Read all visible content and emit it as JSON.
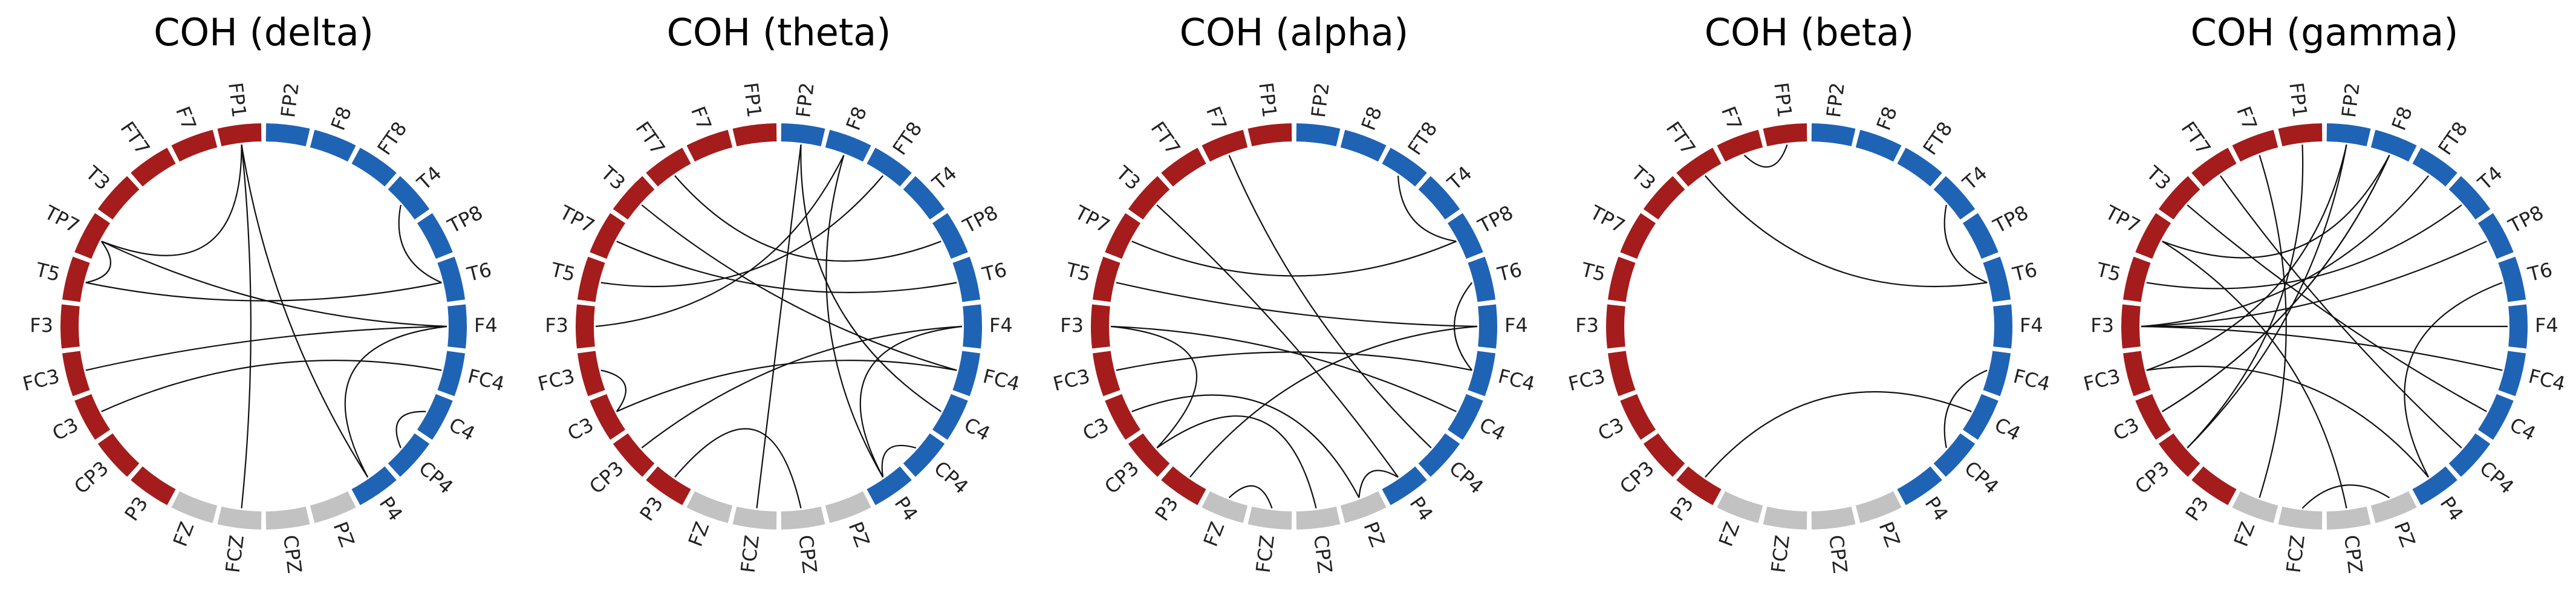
{
  "electrodes": [
    "FP2",
    "F8",
    "FT8",
    "T4",
    "TP8",
    "T6",
    "F4",
    "FC4",
    "C4",
    "CP4",
    "P4",
    "PZ",
    "CPZ",
    "FCZ",
    "FZ",
    "P3",
    "CP3",
    "C3",
    "FC3",
    "F3",
    "T5",
    "TP7",
    "T3",
    "FT7",
    "F7",
    "FP1"
  ],
  "segment_colors": [
    "#1f63b5",
    "#1f63b5",
    "#1f63b5",
    "#1f63b5",
    "#1f63b5",
    "#1f63b5",
    "#1f63b5",
    "#1f63b5",
    "#1f63b5",
    "#1f63b5",
    "#1f63b5",
    "#c2c2c2",
    "#c2c2c2",
    "#c2c2c2",
    "#c2c2c2",
    "#a51c1c",
    "#a51c1c",
    "#a51c1c",
    "#a51c1c",
    "#a51c1c",
    "#a51c1c",
    "#a51c1c",
    "#a51c1c",
    "#a51c1c",
    "#a51c1c",
    "#a51c1c"
  ],
  "panels": [
    {
      "title": "COH (delta)",
      "links": [
        [
          25,
          21
        ],
        [
          25,
          13
        ],
        [
          25,
          10
        ],
        [
          21,
          20
        ],
        [
          21,
          6
        ],
        [
          20,
          5
        ],
        [
          18,
          6
        ],
        [
          17,
          7
        ],
        [
          6,
          10
        ],
        [
          8,
          9
        ],
        [
          3,
          5
        ]
      ]
    },
    {
      "title": "COH (theta)",
      "links": [
        [
          0,
          13
        ],
        [
          0,
          8
        ],
        [
          1,
          10
        ],
        [
          2,
          20
        ],
        [
          23,
          4
        ],
        [
          22,
          7
        ],
        [
          21,
          5
        ],
        [
          19,
          1
        ],
        [
          18,
          17
        ],
        [
          17,
          7
        ],
        [
          16,
          6
        ],
        [
          6,
          10
        ],
        [
          9,
          10
        ],
        [
          15,
          12
        ]
      ]
    },
    {
      "title": "COH (alpha)",
      "links": [
        [
          24,
          9
        ],
        [
          22,
          10
        ],
        [
          21,
          4
        ],
        [
          19,
          16
        ],
        [
          19,
          8
        ],
        [
          18,
          7
        ],
        [
          17,
          11
        ],
        [
          16,
          12
        ],
        [
          15,
          6
        ],
        [
          4,
          2
        ],
        [
          7,
          5
        ],
        [
          10,
          11
        ],
        [
          14,
          13
        ],
        [
          20,
          6
        ]
      ]
    },
    {
      "title": "COH (beta)",
      "links": [
        [
          23,
          5
        ],
        [
          24,
          25
        ],
        [
          3,
          5
        ],
        [
          7,
          9
        ],
        [
          15,
          8
        ]
      ]
    },
    {
      "title": "COH (gamma)",
      "links": [
        [
          25,
          16
        ],
        [
          24,
          14
        ],
        [
          1,
          21
        ],
        [
          1,
          17
        ],
        [
          2,
          19
        ],
        [
          0,
          18
        ],
        [
          3,
          20
        ],
        [
          4,
          19
        ],
        [
          19,
          6
        ],
        [
          19,
          7
        ],
        [
          22,
          8
        ],
        [
          18,
          10
        ],
        [
          17,
          1
        ],
        [
          23,
          9
        ],
        [
          16,
          0
        ],
        [
          21,
          12
        ],
        [
          13,
          11
        ],
        [
          5,
          10
        ]
      ]
    }
  ]
}
